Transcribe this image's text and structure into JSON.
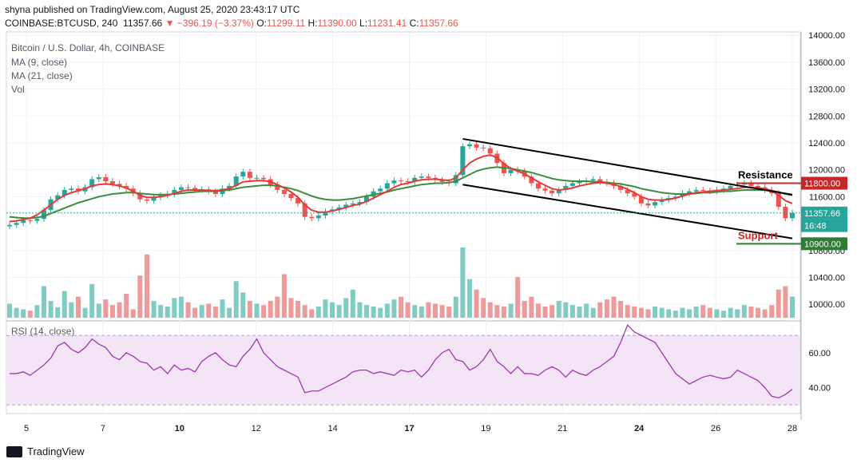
{
  "header": {
    "published": "shyna published on TradingView.com, August 25, 2020 23:43:17 UTC",
    "symbol": "COINBASE:BTCUSD, 240",
    "last": "11357.66",
    "change": "−396.19 (−3.37%)",
    "o_label": "O:",
    "o": "11299.11",
    "h_label": "H:",
    "h": "11390.00",
    "l_label": "L:",
    "l": "11231.41",
    "c_label": "C:",
    "c": "11357.66"
  },
  "legend": {
    "title": "Bitcoin / U.S. Dollar, 4h, COINBASE",
    "ma9": "MA (9, close)",
    "ma21": "MA (21, close)",
    "vol": "Vol"
  },
  "rsi": {
    "label": "RSI (14, close)"
  },
  "annotations": {
    "resistance": "Resistance",
    "support": "Support"
  },
  "footer": {
    "brand": "TradingView"
  },
  "colors": {
    "up": "#26a69a",
    "down": "#ef5350",
    "ma9": "#e53935",
    "ma21": "#388e3c",
    "rsi": "#9c27b0",
    "rsi_band": "#f3e5f5"
  },
  "chart_data": {
    "type": "line",
    "price_axis": {
      "ticks": [
        "14000.00",
        "13600.00",
        "13200.00",
        "12800.00",
        "12400.00",
        "12000.00",
        "11600.00",
        "10800.00",
        "10400.00",
        "10000.00"
      ],
      "ylim": [
        9800,
        14050
      ]
    },
    "price_labels": [
      {
        "text": "11800.00",
        "value": 11800,
        "color": "#c62828"
      },
      {
        "text": "11357.66",
        "value": 11357.66,
        "color": "#26a69a"
      },
      {
        "text": "16:48",
        "value": 11170,
        "color": "#26a69a"
      },
      {
        "text": "10900.00",
        "value": 10900,
        "color": "#2e7d32"
      }
    ],
    "x_ticks": [
      "5",
      "7",
      "10",
      "12",
      "14",
      "17",
      "19",
      "21",
      "24",
      "26",
      "28"
    ],
    "x_bold": [
      "10",
      "17",
      "24"
    ],
    "rsi_axis": {
      "ticks": [
        "60.00",
        "40.00"
      ],
      "ylim": [
        25,
        77
      ],
      "band": [
        30,
        70
      ]
    },
    "price_series": [
      11180,
      11210,
      11250,
      11240,
      11270,
      11400,
      11560,
      11620,
      11700,
      11720,
      11680,
      11740,
      11860,
      11890,
      11830,
      11790,
      11760,
      11720,
      11650,
      11560,
      11540,
      11590,
      11620,
      11640,
      11700,
      11740,
      11730,
      11700,
      11710,
      11680,
      11640,
      11720,
      11760,
      11900,
      11970,
      11880,
      11880,
      11860,
      11780,
      11700,
      11640,
      11580,
      11500,
      11300,
      11280,
      11320,
      11380,
      11410,
      11440,
      11480,
      11500,
      11520,
      11600,
      11680,
      11720,
      11800,
      11840,
      11830,
      11820,
      11880,
      11900,
      11880,
      11850,
      11820,
      11800,
      11920,
      12350,
      12380,
      12330,
      12320,
      12240,
      12100,
      11950,
      12000,
      11980,
      11900,
      11800,
      11720,
      11690,
      11650,
      11700,
      11760,
      11800,
      11820,
      11840,
      11860,
      11820,
      11800,
      11760,
      11700,
      11650,
      11600,
      11500,
      11470,
      11520,
      11550,
      11580,
      11600,
      11650,
      11680,
      11700,
      11690,
      11680,
      11700,
      11720,
      11760,
      11780,
      11800,
      11760,
      11740,
      11700,
      11650,
      11450,
      11280,
      11357.66
    ],
    "ma9_series": [
      11230,
      11240,
      11260,
      11280,
      11330,
      11400,
      11480,
      11560,
      11620,
      11660,
      11690,
      11720,
      11760,
      11780,
      11790,
      11780,
      11760,
      11730,
      11680,
      11620,
      11590,
      11590,
      11600,
      11620,
      11650,
      11680,
      11700,
      11700,
      11700,
      11690,
      11690,
      11700,
      11720,
      11770,
      11820,
      11830,
      11840,
      11840,
      11820,
      11780,
      11730,
      11670,
      11590,
      11480,
      11400,
      11370,
      11370,
      11390,
      11410,
      11440,
      11470,
      11490,
      11530,
      11580,
      11630,
      11680,
      11740,
      11780,
      11800,
      11830,
      11850,
      11860,
      11860,
      11850,
      11840,
      11880,
      12000,
      12100,
      12160,
      12200,
      12220,
      12180,
      12090,
      12020,
      11980,
      11940,
      11880,
      11820,
      11770,
      11720,
      11700,
      11710,
      11730,
      11760,
      11780,
      11800,
      11810,
      11800,
      11780,
      11750,
      11710,
      11660,
      11600,
      11560,
      11550,
      11550,
      11560,
      11580,
      11610,
      11640,
      11660,
      11670,
      11680,
      11690,
      11700,
      11710,
      11720,
      11740,
      11740,
      11730,
      11720,
      11690,
      11620,
      11540,
      11500
    ],
    "ma21_series": [
      11300,
      11290,
      11280,
      11280,
      11290,
      11310,
      11350,
      11390,
      11430,
      11470,
      11510,
      11540,
      11570,
      11600,
      11620,
      11640,
      11650,
      11660,
      11660,
      11650,
      11640,
      11630,
      11630,
      11630,
      11640,
      11650,
      11660,
      11670,
      11680,
      11680,
      11680,
      11690,
      11700,
      11720,
      11740,
      11750,
      11760,
      11770,
      11770,
      11760,
      11740,
      11720,
      11690,
      11650,
      11610,
      11580,
      11560,
      11550,
      11550,
      11560,
      11570,
      11590,
      11610,
      11630,
      11650,
      11670,
      11700,
      11720,
      11740,
      11760,
      11780,
      11790,
      11800,
      11800,
      11810,
      11830,
      11880,
      11930,
      11980,
      12010,
      12030,
      12040,
      12030,
      12020,
      12000,
      11980,
      11960,
      11930,
      11900,
      11870,
      11850,
      11840,
      11830,
      11830,
      11830,
      11820,
      11820,
      11810,
      11800,
      11790,
      11770,
      11750,
      11720,
      11700,
      11680,
      11660,
      11650,
      11640,
      11640,
      11640,
      11650,
      11660,
      11660,
      11670,
      11680,
      11680,
      11690,
      11700,
      11700,
      11700,
      11700,
      11690,
      11670,
      11640,
      11620
    ],
    "volume_series": [
      20,
      14,
      12,
      10,
      18,
      45,
      24,
      15,
      38,
      22,
      30,
      14,
      48,
      20,
      26,
      18,
      22,
      34,
      12,
      60,
      90,
      24,
      18,
      16,
      28,
      30,
      22,
      14,
      18,
      20,
      16,
      26,
      14,
      52,
      36,
      24,
      20,
      18,
      24,
      30,
      62,
      28,
      24,
      18,
      12,
      16,
      26,
      22,
      18,
      28,
      40,
      22,
      18,
      16,
      14,
      20,
      26,
      30,
      22,
      18,
      16,
      22,
      20,
      18,
      16,
      30,
      100,
      55,
      40,
      28,
      22,
      18,
      16,
      20,
      58,
      24,
      30,
      20,
      16,
      18,
      24,
      22,
      18,
      16,
      20,
      14,
      22,
      26,
      30,
      24,
      18,
      16,
      14,
      12,
      16,
      14,
      12,
      10,
      14,
      12,
      16,
      18,
      14,
      12,
      10,
      14,
      12,
      18,
      16,
      14,
      12,
      18,
      40,
      45,
      30
    ],
    "rsi_series": [
      48,
      48,
      49,
      47,
      50,
      53,
      57,
      64,
      66,
      62,
      60,
      63,
      68,
      65,
      63,
      58,
      56,
      60,
      58,
      55,
      54,
      50,
      52,
      48,
      53,
      50,
      51,
      49,
      55,
      58,
      60,
      56,
      53,
      52,
      58,
      62,
      68,
      60,
      56,
      52,
      50,
      48,
      46,
      37,
      38,
      38,
      40,
      42,
      44,
      46,
      49,
      50,
      50,
      48,
      49,
      48,
      47,
      50,
      49,
      50,
      46,
      50,
      56,
      60,
      62,
      56,
      55,
      50,
      52,
      56,
      62,
      55,
      52,
      48,
      52,
      48,
      48,
      47,
      50,
      52,
      50,
      46,
      50,
      48,
      47,
      50,
      52,
      55,
      58,
      66,
      76,
      72,
      70,
      68,
      66,
      60,
      54,
      48,
      45,
      42,
      44,
      46,
      47,
      46,
      45,
      46,
      50,
      48,
      46,
      44,
      40,
      35,
      34,
      36,
      39
    ],
    "resistance_line": {
      "from": {
        "x_index": 66,
        "value": 12460
      },
      "to": {
        "x_index": 114,
        "value": 11630
      }
    },
    "support_line": {
      "from": {
        "x_index": 66,
        "value": 11780
      },
      "to": {
        "x_index": 114,
        "value": 10980
      }
    },
    "resistance_level": 11800,
    "support_level": 10900
  }
}
